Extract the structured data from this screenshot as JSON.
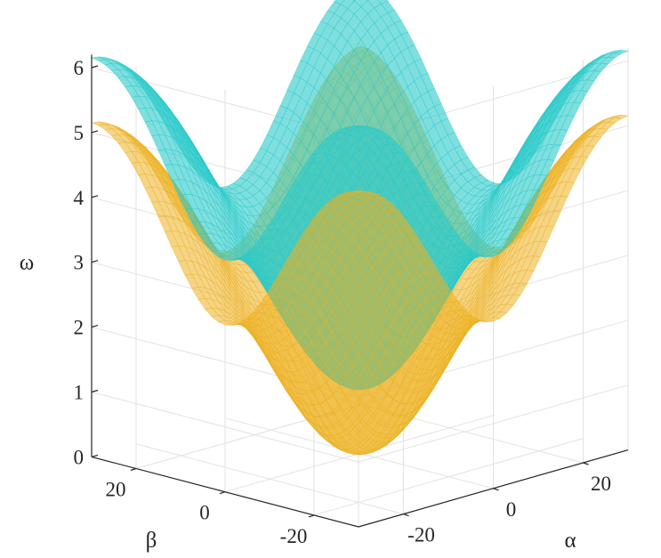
{
  "chart_data": {
    "type": "surface3d",
    "title": "",
    "axes": {
      "x": {
        "label": "α",
        "range": [
          -30,
          30
        ],
        "ticks": [
          -20,
          0,
          20
        ]
      },
      "y": {
        "label": "β",
        "range": [
          -30,
          30
        ],
        "ticks": [
          -20,
          0,
          20
        ]
      },
      "z": {
        "label": "ω",
        "range": [
          0,
          6.2
        ],
        "ticks": [
          0,
          1,
          2,
          3,
          4,
          5,
          6
        ]
      }
    },
    "grid": true,
    "view": "isometric, corner at alpha=-30, beta=-30 nearest the viewer",
    "series": [
      {
        "band": "lower",
        "color": "#edb120",
        "opacity": 0.55,
        "center_value": 0,
        "edge_midpoint_value": 3.0,
        "corner_value": 5.15
      },
      {
        "band": "upper",
        "color": "#2ac9c9",
        "opacity": 0.6,
        "center_value": 1.0,
        "edge_midpoint_value": 4.1,
        "corner_value": 6.15
      }
    ]
  }
}
